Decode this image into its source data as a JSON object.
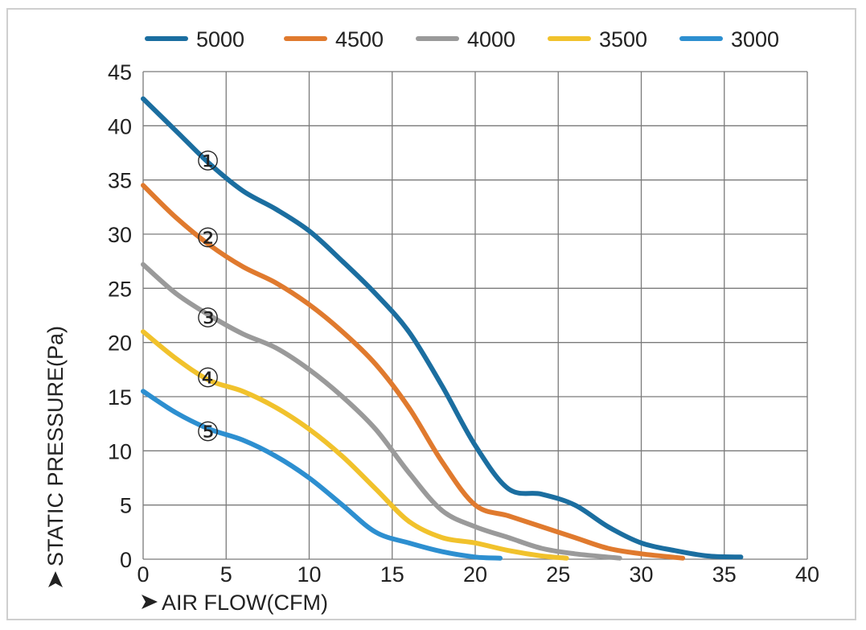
{
  "chart_data": {
    "type": "line",
    "xlabel": "AIR FLOW(CFM)",
    "ylabel": "STATIC PRESSURE(Pa)",
    "xlim": [
      0,
      40
    ],
    "ylim": [
      0,
      45
    ],
    "xticks": [
      "0",
      "5",
      "10",
      "15",
      "20",
      "25",
      "30",
      "35",
      "40"
    ],
    "yticks": [
      "0",
      "5",
      "10",
      "15",
      "20",
      "25",
      "30",
      "35",
      "40",
      "45"
    ],
    "grid": true,
    "legend_position": "top",
    "series": [
      {
        "name": "5000",
        "color": "#1b6ea0",
        "x": [
          0,
          2,
          4,
          6,
          8,
          10,
          12,
          14,
          16,
          18,
          20,
          22,
          24,
          26,
          28,
          30,
          32,
          34,
          36
        ],
        "y": [
          42.5,
          39.5,
          36.5,
          34,
          32.3,
          30.3,
          27.5,
          24.5,
          21,
          16,
          10.5,
          6.5,
          6,
          5,
          3,
          1.5,
          0.8,
          0.3,
          0.2
        ]
      },
      {
        "name": "4500",
        "color": "#e07a2e",
        "x": [
          0,
          2,
          4,
          6,
          8,
          10,
          12,
          14,
          16,
          18,
          20,
          22,
          24,
          26,
          28,
          30,
          32.5
        ],
        "y": [
          34.5,
          31.5,
          29,
          27,
          25.5,
          23.5,
          21,
          18,
          14,
          9,
          5,
          4,
          3,
          2,
          1,
          0.5,
          0.1
        ]
      },
      {
        "name": "4000",
        "color": "#9a9a9a",
        "x": [
          0,
          2,
          4,
          6,
          8,
          10,
          12,
          14,
          16,
          18,
          20,
          22,
          24,
          26,
          28.7
        ],
        "y": [
          27.2,
          24.5,
          22.5,
          20.8,
          19.5,
          17.5,
          15,
          12,
          8,
          4.5,
          3,
          2,
          1,
          0.5,
          0.1
        ]
      },
      {
        "name": "3500",
        "color": "#f1c22c",
        "x": [
          0,
          2,
          4,
          6,
          8,
          10,
          12,
          14,
          16,
          18,
          20,
          22,
          24,
          25.5
        ],
        "y": [
          21,
          18.5,
          16.5,
          15.5,
          14,
          12,
          9.5,
          6.5,
          3.5,
          2,
          1.5,
          0.8,
          0.3,
          0.1
        ]
      },
      {
        "name": "3000",
        "color": "#2d8fd0",
        "x": [
          0,
          2,
          4,
          6,
          8,
          10,
          12,
          14,
          16,
          18,
          20,
          21.5
        ],
        "y": [
          15.5,
          13.5,
          12,
          11,
          9.5,
          7.5,
          5,
          2.5,
          1.5,
          0.7,
          0.2,
          0.1
        ]
      }
    ],
    "annotations": [
      {
        "text": "①",
        "x": 4,
        "y": 36.8
      },
      {
        "text": "②",
        "x": 4,
        "y": 29.7
      },
      {
        "text": "③",
        "x": 4,
        "y": 22.3
      },
      {
        "text": "④",
        "x": 4,
        "y": 16.8
      },
      {
        "text": "⑤",
        "x": 4,
        "y": 11.8
      }
    ]
  }
}
